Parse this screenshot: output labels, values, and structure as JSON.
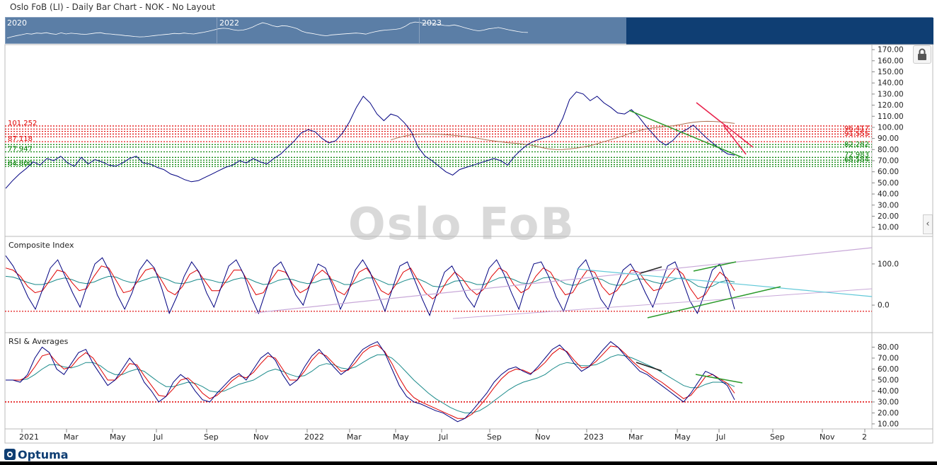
{
  "app": {
    "title": "Oslo FoB (LI) - Daily Bar Chart - NOK - No Layout",
    "watermark": "Oslo FoB",
    "logo": "Optuma"
  },
  "navigator": {
    "years": [
      "2020",
      "2022",
      "2023"
    ]
  },
  "colors": {
    "price": "#000080",
    "resistance": "#e00000",
    "support": "#008000",
    "ma_red": "#e00000",
    "ma_teal": "#1a8a8a",
    "ma_brown": "#b07050",
    "trend_red": "#e8204a",
    "trend_green": "#2a9a2a",
    "trend_violet": "#c8a8d8",
    "trend_cyan": "#60c8d8",
    "trend_black": "#222222",
    "nav_bg": "#5b7ea6",
    "nav_dark": "#0f3e73"
  },
  "chart_data": [
    {
      "type": "line",
      "panel": "price",
      "y_axis_labels": [
        "170.00",
        "160.00",
        "150.00",
        "140.00",
        "130.00",
        "120.00",
        "110.00",
        "100.00",
        "90.00",
        "80.00",
        "70.00",
        "60.00",
        "50.00",
        "40.00",
        "30.00",
        "20.00",
        "10.00"
      ],
      "ylim": [
        5,
        172
      ],
      "x_tick_labels": [
        "2021",
        "Mar",
        "May",
        "Jul",
        "Sep",
        "Nov",
        "2022",
        "Mar",
        "May",
        "Jul",
        "Sep",
        "Nov",
        "2023",
        "Mar",
        "May",
        "Jul",
        "Sep",
        "Nov",
        "2"
      ],
      "series": [
        {
          "values": [
            45,
            52,
            58,
            63,
            69,
            66,
            72,
            70,
            74,
            68,
            65,
            73,
            67,
            71,
            69,
            66,
            65,
            68,
            72,
            74,
            68,
            67,
            64,
            62,
            58,
            56,
            53,
            51,
            52,
            55,
            58,
            61,
            64,
            66,
            70,
            68,
            72,
            69,
            67,
            72,
            76,
            82,
            88,
            95,
            98,
            96,
            90,
            86,
            88,
            95,
            105,
            118,
            128,
            122,
            112,
            106,
            112,
            110,
            104,
            96,
            82,
            74,
            70,
            65,
            60,
            57,
            62,
            64,
            66,
            68,
            70,
            72,
            70,
            66,
            74,
            80,
            85,
            88,
            90,
            92,
            96,
            108,
            125,
            132,
            130,
            124,
            128,
            122,
            118,
            113,
            112,
            116,
            110,
            102,
            95,
            88,
            84,
            88,
            95,
            98,
            102,
            96,
            90,
            85,
            80,
            76,
            75
          ]
        }
      ],
      "levels": {
        "left": [
          {
            "label": "101.252",
            "value": 101.25,
            "color": "red"
          },
          {
            "label": "87.118",
            "value": 87.12,
            "color": "red"
          },
          {
            "label": "77.947",
            "value": 77.95,
            "color": "green"
          },
          {
            "label": "64.800",
            "value": 64.8,
            "color": "green"
          }
        ],
        "right": [
          {
            "label": "96.417",
            "value": 96.42,
            "color": "red"
          },
          {
            "label": "91.555",
            "value": 91.56,
            "color": "red"
          },
          {
            "label": "82.282",
            "value": 82.28,
            "color": "green"
          },
          {
            "label": "72.983",
            "value": 72.98,
            "color": "green"
          },
          {
            "label": "68.584",
            "value": 68.58,
            "color": "green"
          }
        ],
        "unlabeled": [
          98.5,
          94,
          84.5,
          70.5,
          66.5
        ]
      }
    },
    {
      "type": "line",
      "panel": "composite",
      "title": "Composite Index",
      "y_axis_labels": [
        "100.0",
        "0.0"
      ],
      "ylim": [
        -60,
        160
      ],
      "level_values": [
        -15
      ],
      "series": [
        {
          "values": [
            120,
            95,
            60,
            20,
            -10,
            40,
            90,
            110,
            70,
            30,
            -5,
            50,
            100,
            115,
            80,
            25,
            -10,
            30,
            85,
            110,
            90,
            40,
            -20,
            20,
            70,
            105,
            80,
            30,
            -5,
            45,
            95,
            110,
            75,
            20,
            -20,
            35,
            90,
            105,
            70,
            25,
            0,
            55,
            100,
            90,
            45,
            -10,
            30,
            85,
            110,
            80,
            30,
            -15,
            40,
            95,
            105,
            60,
            15,
            -25,
            30,
            80,
            95,
            60,
            20,
            -5,
            40,
            90,
            110,
            75,
            30,
            -10,
            50,
            100,
            105,
            70,
            20,
            -15,
            35,
            90,
            110,
            65,
            15,
            -10,
            40,
            85,
            100,
            70,
            30,
            -5,
            45,
            95,
            105,
            60,
            10,
            -20,
            30,
            85,
            100,
            55,
            -10
          ]
        },
        {
          "values": [
            90,
            85,
            70,
            45,
            30,
            35,
            60,
            85,
            80,
            55,
            35,
            40,
            70,
            95,
            90,
            60,
            30,
            35,
            60,
            85,
            90,
            65,
            35,
            25,
            45,
            75,
            85,
            60,
            35,
            35,
            60,
            85,
            85,
            55,
            25,
            30,
            60,
            85,
            80,
            50,
            30,
            40,
            70,
            85,
            70,
            35,
            25,
            50,
            80,
            90,
            65,
            35,
            25,
            50,
            80,
            90,
            60,
            30,
            15,
            30,
            60,
            80,
            65,
            40,
            25,
            40,
            70,
            90,
            80,
            50,
            30,
            40,
            70,
            90,
            80,
            50,
            25,
            30,
            60,
            85,
            80,
            45,
            25,
            35,
            60,
            85,
            80,
            55,
            35,
            40,
            70,
            90,
            75,
            40,
            15,
            25,
            55,
            80,
            65,
            35
          ]
        },
        {
          "values": [
            70,
            68,
            62,
            55,
            50,
            50,
            55,
            62,
            66,
            62,
            55,
            52,
            56,
            64,
            70,
            68,
            60,
            55,
            56,
            62,
            68,
            68,
            62,
            54,
            52,
            56,
            62,
            64,
            60,
            55,
            55,
            62,
            66,
            64,
            56,
            50,
            52,
            60,
            64,
            62,
            56,
            52,
            55,
            62,
            64,
            58,
            50,
            50,
            58,
            66,
            66,
            58,
            50,
            50,
            58,
            64,
            64,
            56,
            46,
            44,
            50,
            58,
            60,
            56,
            50,
            50,
            58,
            66,
            68,
            62,
            54,
            52,
            58,
            66,
            68,
            62,
            52,
            48,
            52,
            60,
            66,
            62,
            52,
            48,
            50,
            58,
            64,
            62,
            56,
            52,
            56,
            64,
            66,
            58,
            46,
            42,
            46,
            56,
            60,
            56
          ]
        }
      ]
    },
    {
      "type": "line",
      "panel": "rsi",
      "title": "RSI & Averages",
      "y_axis_labels": [
        "80.00",
        "70.00",
        "60.00",
        "50.00",
        "40.00",
        "30.00",
        "20.00",
        "10.00"
      ],
      "ylim": [
        8,
        90
      ],
      "level_values": [
        30
      ],
      "series": [
        {
          "values": [
            50,
            50,
            48,
            55,
            70,
            80,
            75,
            60,
            55,
            65,
            75,
            78,
            65,
            55,
            45,
            50,
            60,
            70,
            62,
            48,
            40,
            30,
            35,
            48,
            55,
            50,
            40,
            32,
            30,
            38,
            45,
            52,
            56,
            50,
            60,
            70,
            75,
            68,
            55,
            45,
            50,
            62,
            72,
            78,
            70,
            62,
            55,
            60,
            70,
            78,
            82,
            85,
            75,
            60,
            45,
            35,
            30,
            28,
            25,
            22,
            20,
            16,
            12,
            15,
            22,
            30,
            38,
            48,
            55,
            60,
            62,
            58,
            55,
            62,
            70,
            78,
            82,
            75,
            65,
            58,
            62,
            70,
            78,
            85,
            80,
            72,
            65,
            58,
            55,
            50,
            45,
            40,
            35,
            30,
            38,
            48,
            58,
            55,
            50,
            45,
            32
          ]
        },
        {
          "values": [
            50,
            50,
            50,
            53,
            62,
            72,
            74,
            66,
            60,
            62,
            70,
            75,
            70,
            60,
            50,
            50,
            56,
            65,
            64,
            54,
            45,
            36,
            35,
            42,
            50,
            52,
            46,
            38,
            33,
            36,
            42,
            49,
            54,
            52,
            57,
            65,
            72,
            70,
            60,
            50,
            50,
            58,
            68,
            75,
            72,
            65,
            58,
            59,
            66,
            75,
            80,
            82,
            76,
            65,
            52,
            41,
            34,
            30,
            27,
            24,
            21,
            18,
            15,
            15,
            19,
            26,
            34,
            43,
            51,
            57,
            60,
            59,
            56,
            60,
            66,
            74,
            79,
            76,
            68,
            61,
            62,
            67,
            74,
            81,
            80,
            74,
            67,
            61,
            57,
            52,
            48,
            43,
            38,
            33,
            36,
            44,
            53,
            55,
            51,
            47,
            38
          ]
        },
        {
          "values": [
            50,
            50,
            50,
            51,
            55,
            60,
            64,
            64,
            62,
            61,
            63,
            66,
            66,
            63,
            58,
            55,
            55,
            58,
            60,
            58,
            53,
            48,
            44,
            44,
            46,
            48,
            47,
            44,
            40,
            39,
            40,
            43,
            46,
            48,
            50,
            54,
            58,
            60,
            58,
            55,
            53,
            54,
            58,
            63,
            65,
            64,
            61,
            60,
            62,
            66,
            70,
            73,
            73,
            70,
            64,
            57,
            50,
            44,
            38,
            33,
            29,
            25,
            22,
            20,
            20,
            22,
            26,
            31,
            36,
            41,
            45,
            48,
            50,
            52,
            55,
            60,
            64,
            66,
            65,
            63,
            63,
            64,
            67,
            71,
            73,
            72,
            70,
            67,
            64,
            61,
            57,
            53,
            49,
            45,
            43,
            43,
            46,
            48,
            48,
            47,
            44
          ]
        }
      ]
    }
  ]
}
